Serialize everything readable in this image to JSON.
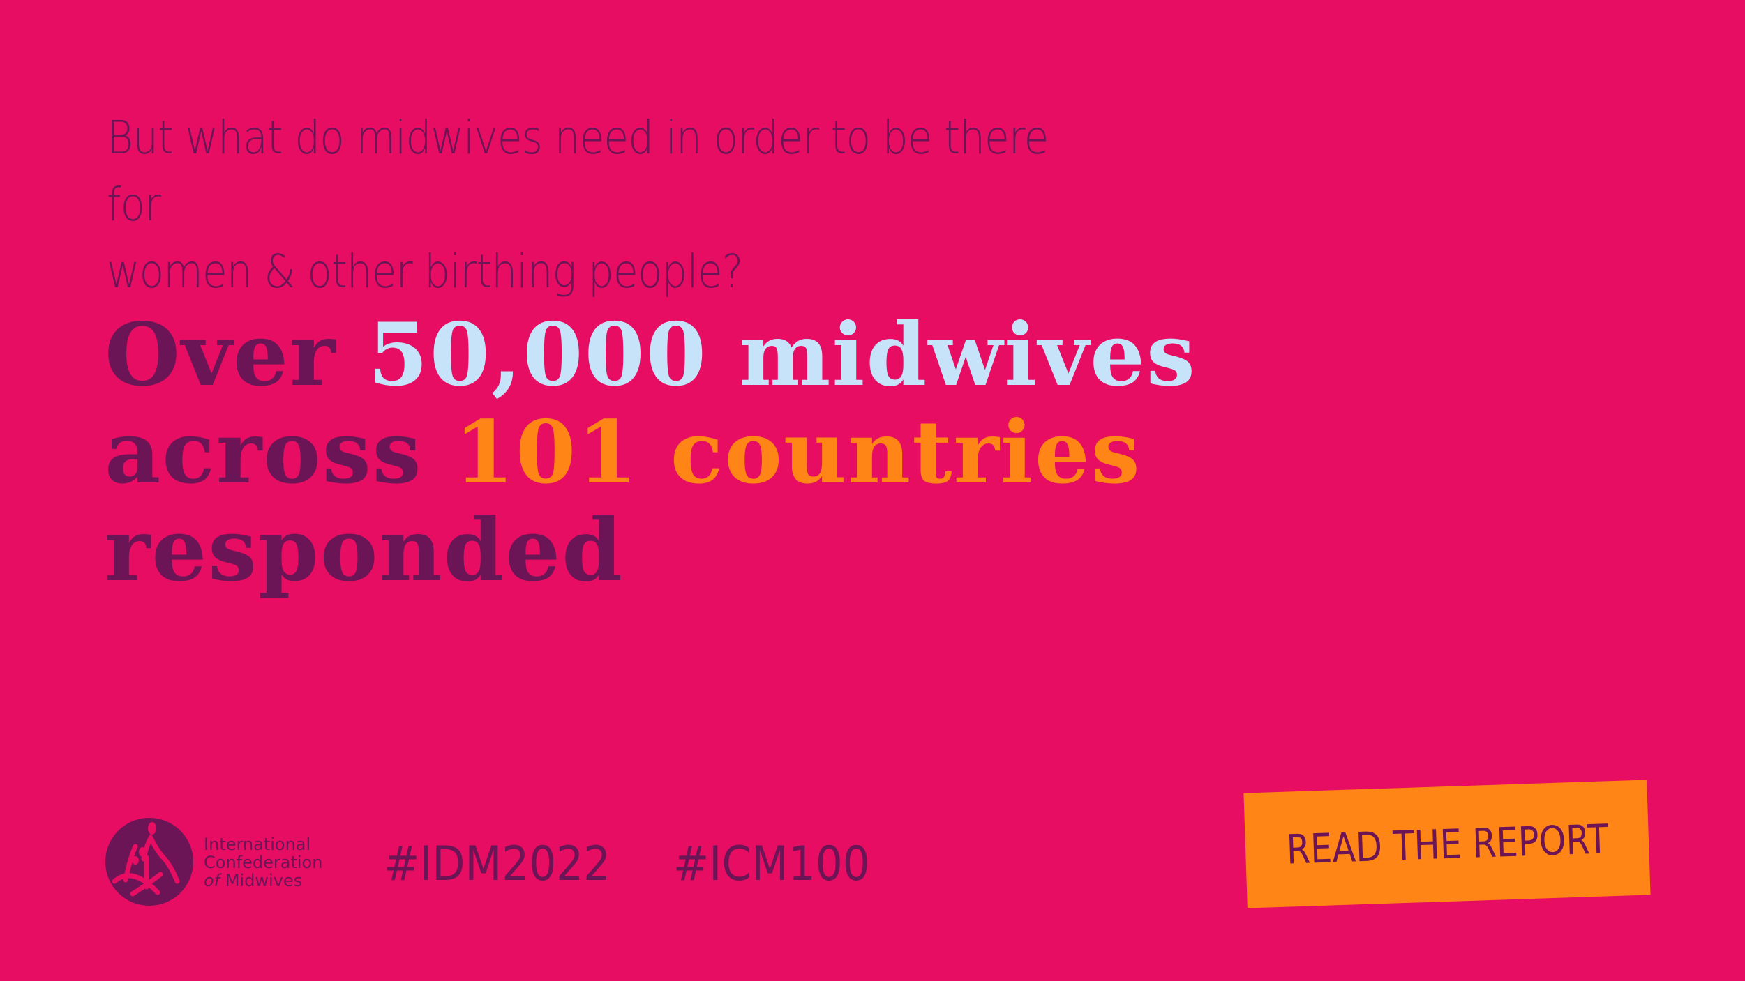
{
  "colors": {
    "background": "#E60D62",
    "purple": "#6B1456",
    "light_blue": "#C6E3FA",
    "orange": "#FF8616"
  },
  "subtitle": {
    "line1": "But what do midwives need in order to be there for",
    "line2": "women & other birthing people?"
  },
  "headline": {
    "part1": "Over ",
    "highlight1": "50,000 midwives",
    "part2": "across ",
    "highlight2": "101 countries",
    "part3": "responded"
  },
  "logo": {
    "line1": "International",
    "line2": "Confederation",
    "of": "of",
    "line3": "Midwives"
  },
  "hashtags": [
    "#IDM2022",
    "#ICM100"
  ],
  "cta": {
    "label": "READ THE REPORT"
  }
}
